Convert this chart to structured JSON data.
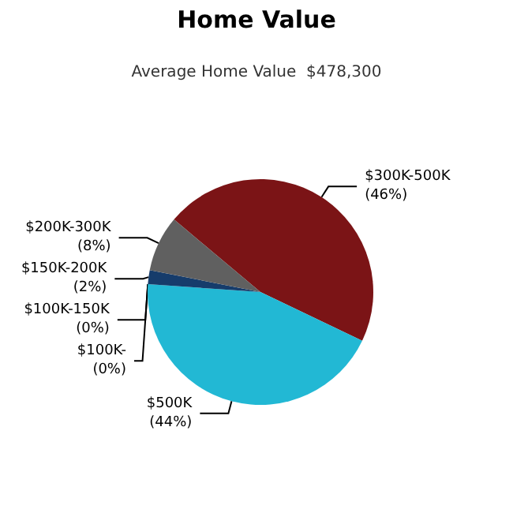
{
  "chart_data": {
    "type": "pie",
    "title": "Home Value",
    "subtitle": "Average Home Value  $478,300",
    "categories": [
      "$300K-500K",
      "$500K",
      "$100K-150K",
      "$100K-",
      "$150K-200K",
      "$200K-300K"
    ],
    "values": [
      46,
      44,
      0,
      0,
      2,
      8
    ],
    "value_labels": [
      "(46%)",
      "(44%)",
      "(0%)",
      "(0%)",
      "(2%)",
      "(8%)"
    ],
    "colors": [
      "#7b1416",
      "#22b8d4",
      "#2a5d8f",
      "#1f4e7a",
      "#163c6b",
      "#606060"
    ],
    "legend": false
  }
}
